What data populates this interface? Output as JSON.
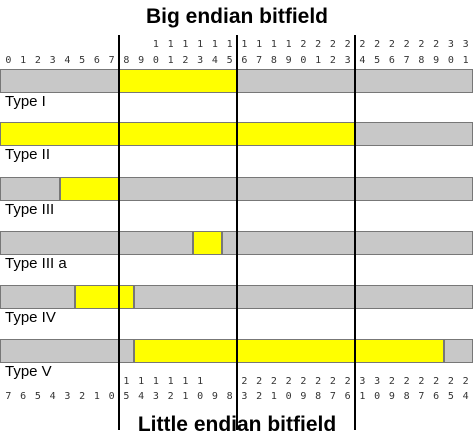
{
  "titles": {
    "top": "Big endian bitfield",
    "bottom": "Little endian bitfield"
  },
  "colors": {
    "highlight": "#ffff00",
    "background": "#c8c8c8",
    "outline": "#777777"
  },
  "big_endian_index": {
    "tens": [
      "",
      "",
      "",
      "",
      "",
      "",
      "",
      "",
      "",
      "",
      "1",
      "1",
      "1",
      "1",
      "1",
      "1",
      "1",
      "1",
      "1",
      "1",
      "2",
      "2",
      "2",
      "2",
      "2",
      "2",
      "2",
      "2",
      "2",
      "2",
      "3",
      "3"
    ],
    "units": [
      "0",
      "1",
      "2",
      "3",
      "4",
      "5",
      "6",
      "7",
      "8",
      "9",
      "0",
      "1",
      "2",
      "3",
      "4",
      "5",
      "6",
      "7",
      "8",
      "9",
      "0",
      "1",
      "2",
      "3",
      "4",
      "5",
      "6",
      "7",
      "8",
      "9",
      "0",
      "1"
    ]
  },
  "little_endian_index": {
    "tens": [
      "",
      "",
      "",
      "",
      "",
      "",
      "",
      "",
      "1",
      "1",
      "1",
      "1",
      "1",
      "1",
      "",
      "",
      "2",
      "2",
      "2",
      "2",
      "2",
      "2",
      "2",
      "2",
      "3",
      "3",
      "2",
      "2",
      "2",
      "2",
      "2",
      "2"
    ],
    "units": [
      "7",
      "6",
      "5",
      "4",
      "3",
      "2",
      "1",
      "0",
      "5",
      "4",
      "3",
      "2",
      "1",
      "0",
      "9",
      "8",
      "3",
      "2",
      "1",
      "0",
      "9",
      "8",
      "7",
      "6",
      "1",
      "0",
      "9",
      "8",
      "7",
      "6",
      "5",
      "4"
    ]
  },
  "rows": [
    {
      "label": "Type I",
      "highlight_bits": [
        8,
        15
      ]
    },
    {
      "label": "Type II",
      "highlight_bits": [
        0,
        23
      ]
    },
    {
      "label": "Type III",
      "highlight_bits": [
        4,
        7
      ]
    },
    {
      "label": "Type III a",
      "highlight_bits": [
        13,
        14
      ]
    },
    {
      "label": "Type IV",
      "highlight_bits": [
        5,
        8
      ]
    },
    {
      "label": "Type V",
      "highlight_bits": [
        9,
        29
      ]
    }
  ]
}
